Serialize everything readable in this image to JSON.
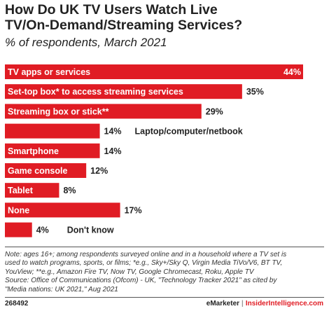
{
  "title_line1": "How Do UK TV Users Watch Live",
  "title_line2": "TV/On-Demand/Streaming Services?",
  "subtitle": "% of respondents, March 2021",
  "note_lines": [
    "Note: ages 16+; among respondents surveyed online and in a household where a TV set is",
    "used to watch programs, sports, or films; *e.g., Sky+/Sky Q, Virgin Media TiVo/V6, BT TV,",
    "YouView; **e.g., Amazon Fire TV, Now TV, Google Chromecast, Roku, Apple TV",
    "Source: Office of Communications (Ofcom) - UK, \"Technology Tracker 2021\" as cited by",
    "\"Media nations: UK 2021,\" Aug 2021"
  ],
  "footer": {
    "id": "268492",
    "brand1": "eMarketer",
    "separator": "|",
    "brand2": "InsiderIntelligence.com"
  },
  "colors": {
    "bar": "#e01c24",
    "label_inside": "#ffffff",
    "label_outside": "#222222"
  },
  "chart_data": {
    "type": "bar",
    "orientation": "horizontal",
    "unit": "%",
    "xlim": [
      0,
      44
    ],
    "categories": [
      "TV apps or services",
      "Set-top box* to access streaming services",
      "Streaming box or stick**",
      "Laptop/computer/netbook",
      "Smartphone",
      "Game console",
      "Tablet",
      "None",
      "Don't know"
    ],
    "values": [
      44,
      35,
      29,
      14,
      14,
      12,
      8,
      17,
      4
    ],
    "value_labels": [
      "44%",
      "35%",
      "29%",
      "14%",
      "14%",
      "12%",
      "8%",
      "17%",
      "4%"
    ],
    "label_inside": [
      true,
      true,
      true,
      false,
      true,
      true,
      true,
      true,
      false
    ]
  }
}
